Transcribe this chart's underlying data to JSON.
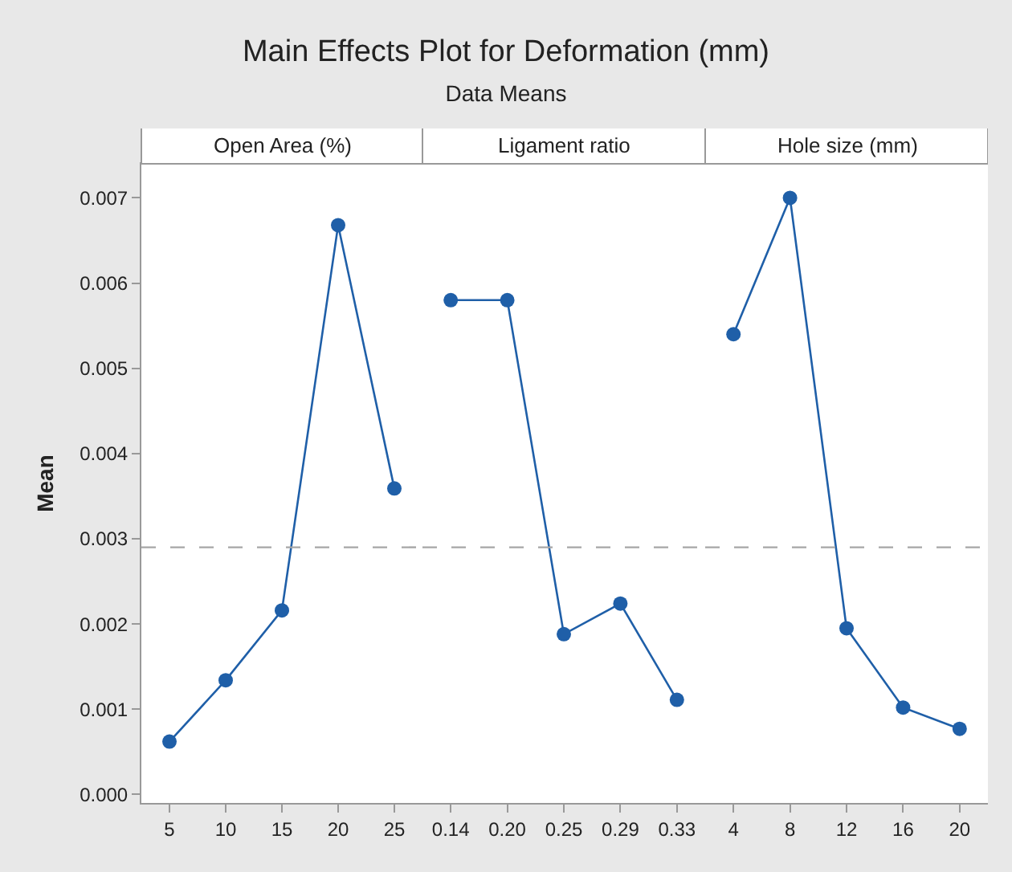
{
  "chart_data": [
    {
      "type": "other",
      "title": "Main Effects Plot for Deformation (mm)",
      "subtitle": "Data Means"
    },
    {
      "type": "line",
      "xlabel": "Open Area (%)",
      "ylabel": "Mean",
      "categories": [
        "5",
        "10",
        "15",
        "20",
        "25"
      ],
      "series": [
        {
          "color": "#1f5fa8",
          "values": [
            0.00062,
            0.00134,
            0.00216,
            0.00668,
            0.00359
          ]
        }
      ],
      "ylim": [
        -0.0001,
        0.0074
      ],
      "yticks": [
        {
          "value": 0,
          "label": "0.000"
        },
        {
          "value": 0.001,
          "label": "0.001"
        },
        {
          "value": 0.002,
          "label": "0.002"
        },
        {
          "value": 0.003,
          "label": "0.003"
        },
        {
          "value": 0.004,
          "label": "0.004"
        },
        {
          "value": 0.005,
          "label": "0.005"
        },
        {
          "value": 0.006,
          "label": "0.006"
        },
        {
          "value": 0.007,
          "label": "0.007"
        }
      ],
      "ref_lines": [
        {
          "axis": "y",
          "value": 0.0029,
          "color": "#a6a6a6",
          "line_style": "dashed"
        }
      ],
      "marker": "circle"
    },
    {
      "type": "line",
      "xlabel": "Ligament ratio",
      "categories": [
        "0.14",
        "0.20",
        "0.25",
        "0.29",
        "0.33"
      ],
      "series": [
        {
          "color": "#1f5fa8",
          "values": [
            0.0058,
            0.0058,
            0.00188,
            0.00224,
            0.00111
          ]
        }
      ],
      "ylim": [
        -0.0001,
        0.0074
      ],
      "tick_labels": "x",
      "ref_lines": [
        {
          "axis": "y",
          "value": 0.0029,
          "color": "#a6a6a6",
          "line_style": "dashed"
        }
      ],
      "marker": "circle"
    },
    {
      "type": "line",
      "xlabel": "Hole size (mm)",
      "categories": [
        "4",
        "8",
        "12",
        "16",
        "20"
      ],
      "series": [
        {
          "color": "#1f5fa8",
          "values": [
            0.0054,
            0.007,
            0.00195,
            0.00102,
            0.00077
          ]
        }
      ],
      "ylim": [
        -0.0001,
        0.0074
      ],
      "tick_labels": "x",
      "ref_lines": [
        {
          "axis": "y",
          "value": 0.0029,
          "color": "#a6a6a6",
          "line_style": "dashed"
        }
      ],
      "marker": "circle"
    }
  ]
}
